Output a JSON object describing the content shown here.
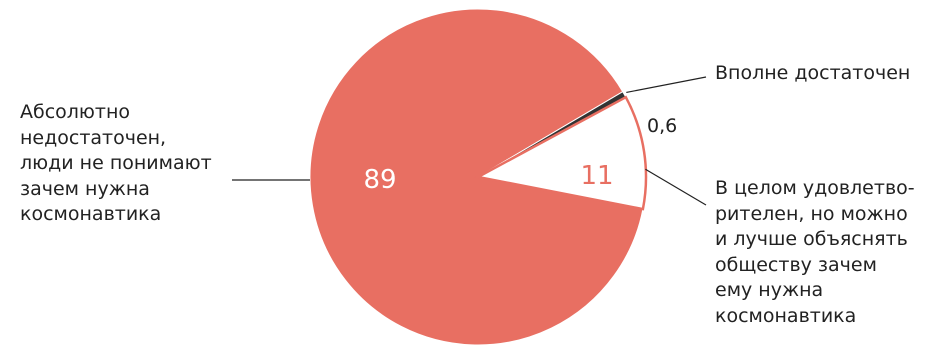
{
  "chart_data": {
    "type": "pie",
    "slices": [
      {
        "label": "Абсолютно\nнедостаточен,\nлюди не понимают\nзачем нужна\nкосмонавтика",
        "value": 89,
        "value_label": "89",
        "color": "#e86f62"
      },
      {
        "label": "Вполне достаточен",
        "value": 0.6,
        "value_label": "0,6",
        "color": "#333333"
      },
      {
        "label": "В целом удовлетво-\nрителен, но можно\nи лучше объяснять\nобществу зачем\nему нужна\nкосмонавтика",
        "value": 11,
        "value_label": "11",
        "color": "#ffffff",
        "outline": "#e86f62"
      }
    ],
    "value_label_colors": {
      "inside_dark": "#ffffff",
      "inside_light": "#e86f62",
      "outside": "#222222"
    },
    "leader_color": "#222222"
  }
}
